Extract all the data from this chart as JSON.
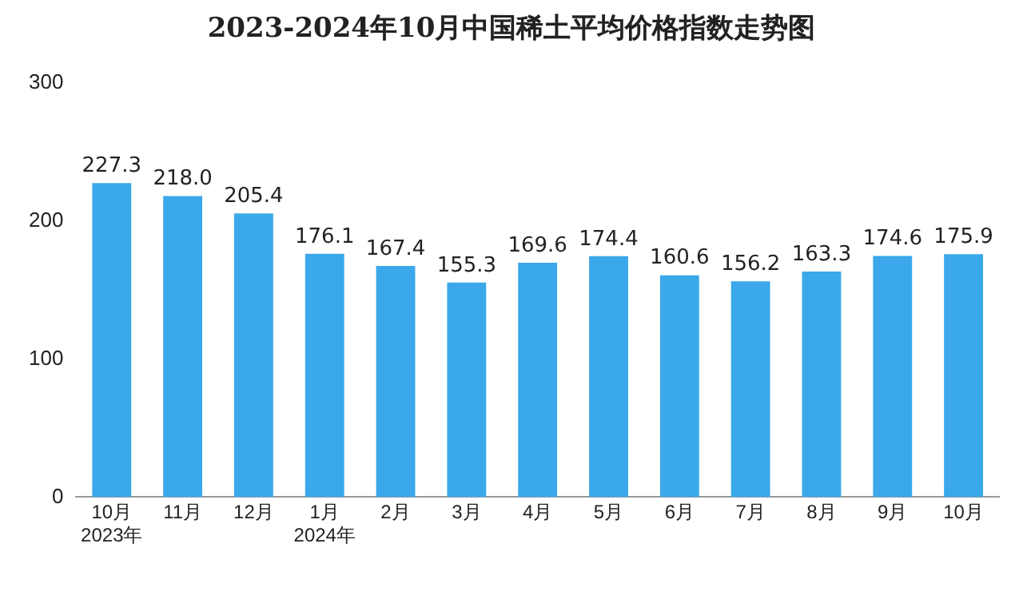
{
  "chart_data": {
    "type": "bar",
    "title": "2023-2024年10月中国稀土平均价格指数走势图",
    "categories": [
      "10月\n2023年",
      "11月",
      "12月",
      "1月\n2024年",
      "2月",
      "3月",
      "4月",
      "5月",
      "6月",
      "7月",
      "8月",
      "9月",
      "10月"
    ],
    "values": [
      227.3,
      218.0,
      205.4,
      176.1,
      167.4,
      155.3,
      169.6,
      174.4,
      160.6,
      156.2,
      163.3,
      174.6,
      175.9
    ],
    "value_labels": [
      "227.3",
      "218.0",
      "205.4",
      "176.1",
      "167.4",
      "155.3",
      "169.6",
      "174.4",
      "160.6",
      "156.2",
      "163.3",
      "174.6",
      "175.9"
    ],
    "color": "#3aa8ea",
    "ylim": [
      0,
      300
    ],
    "yticks": [
      0,
      100,
      200,
      300
    ],
    "grid": false,
    "legend": false
  }
}
